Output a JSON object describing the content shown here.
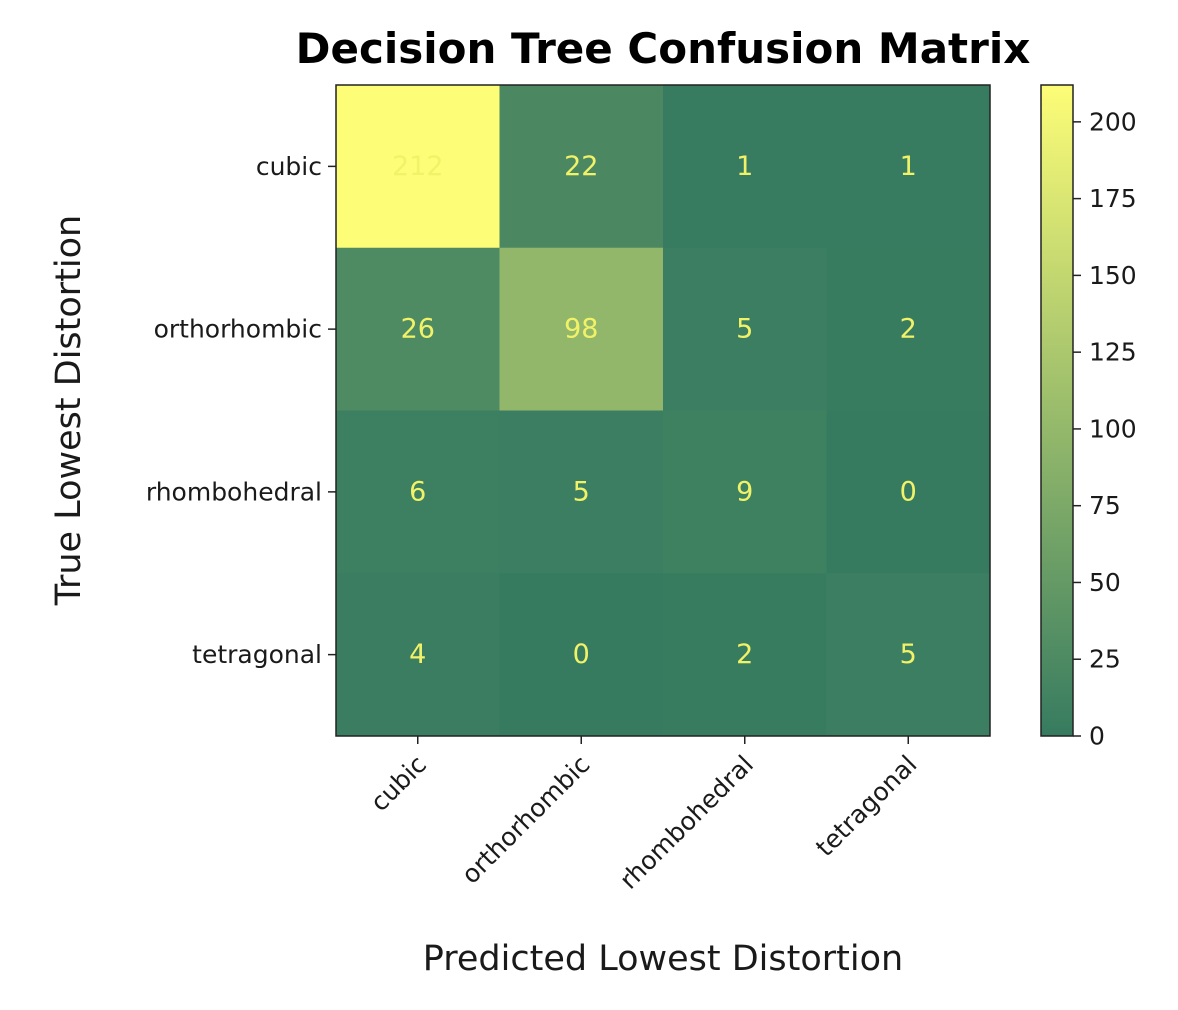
{
  "chart_data": {
    "type": "heatmap",
    "title": "Decision Tree Confusion Matrix",
    "xlabel": "Predicted Lowest Distortion",
    "ylabel": "True Lowest Distortion",
    "x_categories": [
      "cubic",
      "orthorhombic",
      "rhombohedral",
      "tetragonal"
    ],
    "y_categories": [
      "cubic",
      "orthorhombic",
      "rhombohedral",
      "tetragonal"
    ],
    "values": [
      [
        212,
        22,
        1,
        1
      ],
      [
        26,
        98,
        5,
        2
      ],
      [
        6,
        5,
        9,
        0
      ],
      [
        4,
        0,
        2,
        5
      ]
    ],
    "colorbar": {
      "range": [
        0,
        212
      ],
      "ticks": [
        0,
        25,
        50,
        75,
        100,
        125,
        150,
        175,
        200
      ],
      "tick_labels": [
        "0",
        "25",
        "50",
        "75",
        "100",
        "125",
        "150",
        "175",
        "200"
      ],
      "color_low": "#367b60",
      "color_high": "#fdfd77"
    },
    "cell_text_color": "#f2f268",
    "grid": false
  }
}
